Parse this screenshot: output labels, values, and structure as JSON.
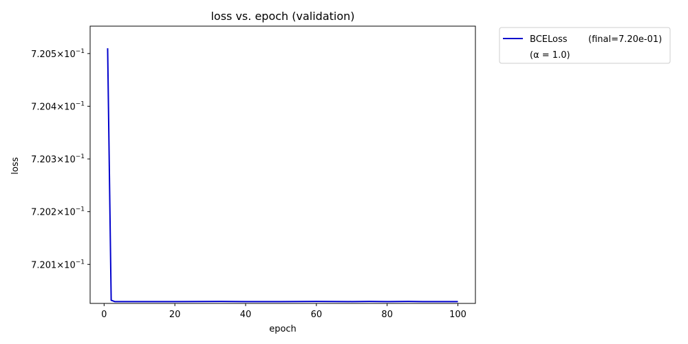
{
  "chart_data": {
    "type": "line",
    "title": "loss vs. epoch (validation)",
    "xlabel": "epoch",
    "ylabel": "loss",
    "xlim": [
      -3.95,
      104.95
    ],
    "ylim": [
      0.720026,
      0.720552
    ],
    "yscale": "log",
    "grid": false,
    "legend_position": "outside top-right",
    "x_ticks": [
      {
        "value": 0,
        "label": "0"
      },
      {
        "value": 20,
        "label": "20"
      },
      {
        "value": 40,
        "label": "40"
      },
      {
        "value": 60,
        "label": "60"
      },
      {
        "value": 80,
        "label": "80"
      },
      {
        "value": 100,
        "label": "100"
      }
    ],
    "y_ticks": [
      {
        "value": 0.7201,
        "mantissa": "7.201",
        "exponent": "−1"
      },
      {
        "value": 0.7202,
        "mantissa": "7.202",
        "exponent": "−1"
      },
      {
        "value": 0.7203,
        "mantissa": "7.203",
        "exponent": "−1"
      },
      {
        "value": 0.7204,
        "mantissa": "7.204",
        "exponent": "−1"
      },
      {
        "value": 0.7205,
        "mantissa": "7.205",
        "exponent": "−1"
      }
    ],
    "series": [
      {
        "name": "BCELoss",
        "legend_final": "(final=7.20e-01)",
        "legend_alpha": "(α = 1.0)",
        "color": "#0000cc",
        "x": [
          1,
          2,
          3,
          4,
          5,
          10,
          20,
          33,
          40,
          50,
          60,
          70,
          75,
          80,
          86,
          90,
          100
        ],
        "y": [
          0.72051,
          0.720032,
          0.7200295,
          0.7200295,
          0.7200295,
          0.7200295,
          0.7200295,
          0.7200297,
          0.7200295,
          0.7200295,
          0.7200297,
          0.7200295,
          0.7200297,
          0.7200295,
          0.7200297,
          0.7200295,
          0.7200295
        ]
      }
    ]
  }
}
